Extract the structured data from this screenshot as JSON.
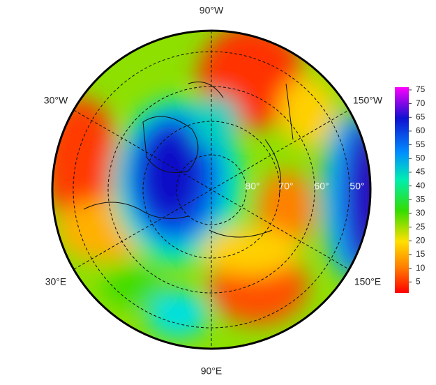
{
  "map": {
    "longitude_labels": [
      "90°W",
      "30°W",
      "150°W",
      "30°E",
      "150°E",
      "90°E"
    ],
    "latitude_labels": [
      "80°",
      "70°",
      "60°",
      "50°"
    ],
    "colorbar": {
      "lim": [
        1,
        76
      ],
      "ticks": [
        5,
        10,
        15,
        20,
        25,
        30,
        35,
        40,
        45,
        50,
        55,
        60,
        65,
        70,
        75
      ]
    }
  }
}
